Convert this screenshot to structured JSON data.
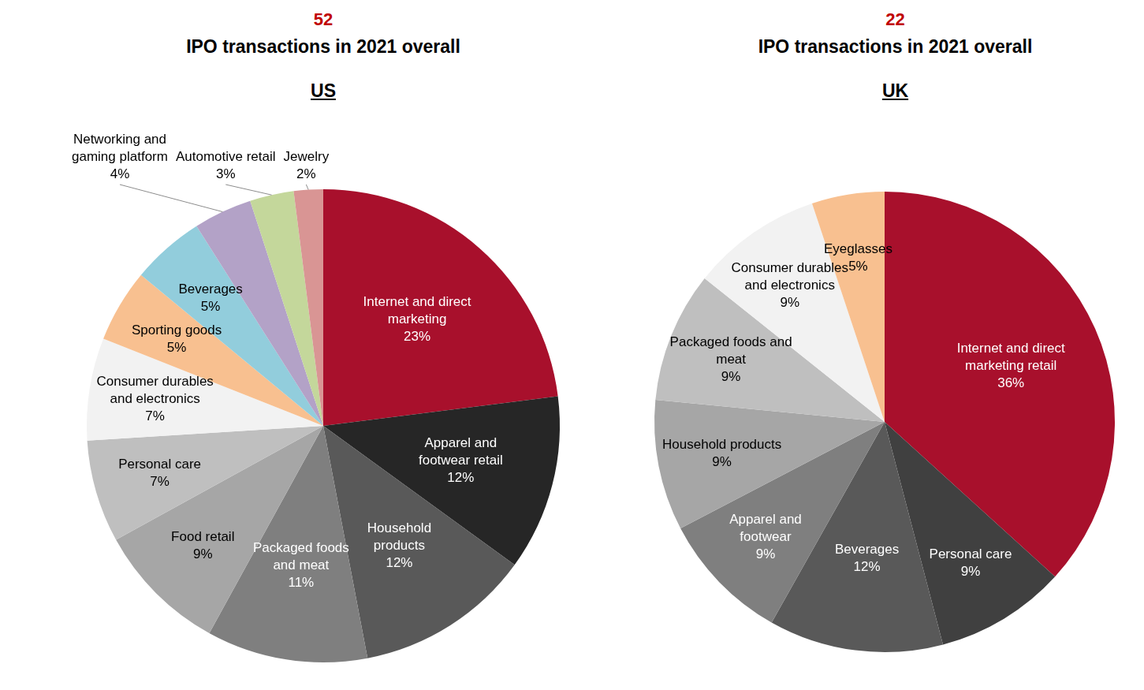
{
  "chart_data": [
    {
      "type": "pie",
      "total_transactions": 52,
      "title": "IPO transactions in 2021 overall",
      "subtitle": "US",
      "categories": [
        "Internet and direct marketing",
        "Apparel and footwear retail",
        "Household products",
        "Packaged foods and meat",
        "Food retail",
        "Personal care",
        "Consumer durables and electronics",
        "Sporting goods",
        "Beverages",
        "Networking and gaming platform",
        "Automotive retail",
        "Jewelry"
      ],
      "values": [
        23,
        12,
        12,
        11,
        9,
        7,
        7,
        5,
        5,
        4,
        3,
        2
      ],
      "value_labels": [
        "23%",
        "12%",
        "12%",
        "11%",
        "9%",
        "7%",
        "7%",
        "5%",
        "5%",
        "4%",
        "3%",
        "2%"
      ],
      "colors": [
        "#a8102c",
        "#262626",
        "#595959",
        "#7f7f7f",
        "#a6a6a6",
        "#bfbfbf",
        "#f2f2f2",
        "#f8c090",
        "#92cddc",
        "#b3a2c7",
        "#c4d79b",
        "#d99594"
      ],
      "data_labels": true
    },
    {
      "type": "pie",
      "total_transactions": 22,
      "title": "IPO transactions in 2021 overall",
      "subtitle": "UK",
      "categories": [
        "Internet and direct marketing retail",
        "Personal care",
        "Beverages",
        "Apparel and footwear",
        "Household products",
        "Packaged foods and meat",
        "Consumer durables and electronics",
        "Eyeglasses"
      ],
      "values": [
        36,
        9,
        12,
        9,
        9,
        9,
        9,
        5
      ],
      "value_labels": [
        "36%",
        "9%",
        "12%",
        "9%",
        "9%",
        "9%",
        "9%",
        "5%"
      ],
      "colors": [
        "#a8102c",
        "#404040",
        "#595959",
        "#7f7f7f",
        "#a6a6a6",
        "#bfbfbf",
        "#f2f2f2",
        "#f8c090"
      ],
      "data_labels": true
    }
  ]
}
